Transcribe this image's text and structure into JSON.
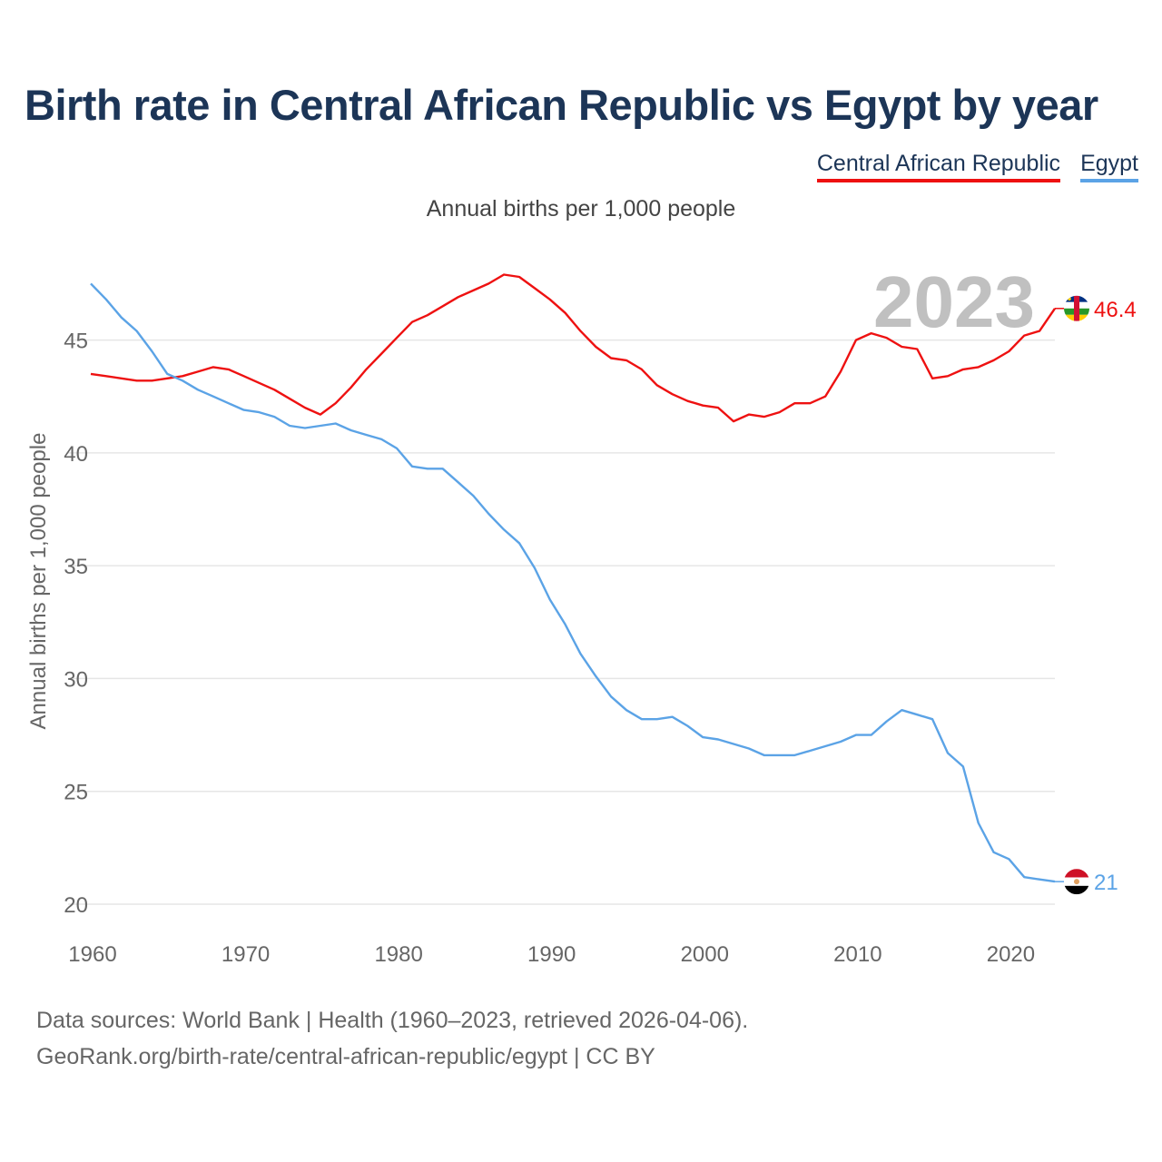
{
  "title": "Birth rate in Central African Republic vs Egypt by year",
  "subtitle": "Annual births per 1,000 people",
  "year_label": "2023",
  "footer": {
    "line1": "Data sources: World Bank | Health (1960–2023, retrieved 2026-04-06).",
    "line2": "GeoRank.org/birth-rate/central-african-republic/egypt | CC BY"
  },
  "colors": {
    "title": "#1c3557",
    "car": "#ee1111",
    "egypt": "#5ba3e6",
    "grid": "#e6e6e6",
    "axis_text": "#666666",
    "year": "#c0c0c0"
  },
  "chart_data": {
    "type": "line",
    "title": "Birth rate in Central African Republic vs Egypt by year",
    "ylabel": "Annual births per 1,000 people",
    "xlabel": "",
    "xlim": [
      1960,
      2023
    ],
    "ylim": [
      20,
      48
    ],
    "x_ticks": [
      1960,
      1970,
      1980,
      1990,
      2000,
      2010,
      2020
    ],
    "y_ticks": [
      20,
      25,
      30,
      35,
      40,
      45
    ],
    "legend": "top-right",
    "x": [
      1960,
      1961,
      1962,
      1963,
      1964,
      1965,
      1966,
      1967,
      1968,
      1969,
      1970,
      1971,
      1972,
      1973,
      1974,
      1975,
      1976,
      1977,
      1978,
      1979,
      1980,
      1981,
      1982,
      1983,
      1984,
      1985,
      1986,
      1987,
      1988,
      1989,
      1990,
      1991,
      1992,
      1993,
      1994,
      1995,
      1996,
      1997,
      1998,
      1999,
      2000,
      2001,
      2002,
      2003,
      2004,
      2005,
      2006,
      2007,
      2008,
      2009,
      2010,
      2011,
      2012,
      2013,
      2014,
      2015,
      2016,
      2017,
      2018,
      2019,
      2020,
      2021,
      2022,
      2023
    ],
    "series": [
      {
        "name": "Central African Republic",
        "color": "#ee1111",
        "last_label": "46.4",
        "values": [
          43.5,
          43.4,
          43.3,
          43.2,
          43.2,
          43.3,
          43.4,
          43.6,
          43.8,
          43.7,
          43.4,
          43.1,
          42.8,
          42.4,
          42.0,
          41.7,
          42.2,
          42.9,
          43.7,
          44.4,
          45.1,
          45.8,
          46.1,
          46.5,
          46.9,
          47.2,
          47.5,
          47.9,
          47.8,
          47.3,
          46.8,
          46.2,
          45.4,
          44.7,
          44.2,
          44.1,
          43.7,
          43.0,
          42.6,
          42.3,
          42.1,
          42.0,
          41.4,
          41.7,
          41.6,
          41.8,
          42.2,
          42.2,
          42.5,
          43.6,
          45.0,
          45.3,
          45.1,
          44.7,
          44.6,
          43.3,
          43.4,
          43.7,
          43.8,
          44.1,
          44.5,
          45.2,
          45.4,
          46.4
        ]
      },
      {
        "name": "Egypt",
        "color": "#5ba3e6",
        "last_label": "21",
        "values": [
          47.5,
          46.8,
          46.0,
          45.4,
          44.5,
          43.5,
          43.2,
          42.8,
          42.5,
          42.2,
          41.9,
          41.8,
          41.6,
          41.2,
          41.1,
          41.2,
          41.3,
          41.0,
          40.8,
          40.6,
          40.2,
          39.4,
          39.3,
          39.3,
          38.7,
          38.1,
          37.3,
          36.6,
          36.0,
          34.9,
          33.5,
          32.4,
          31.1,
          30.1,
          29.2,
          28.6,
          28.2,
          28.2,
          28.3,
          27.9,
          27.4,
          27.3,
          27.1,
          26.9,
          26.6,
          26.6,
          26.6,
          26.8,
          27.0,
          27.2,
          27.5,
          27.5,
          28.1,
          28.6,
          28.4,
          28.2,
          26.7,
          26.1,
          23.6,
          22.3,
          22.0,
          21.2,
          21.1,
          21.0
        ]
      }
    ]
  }
}
